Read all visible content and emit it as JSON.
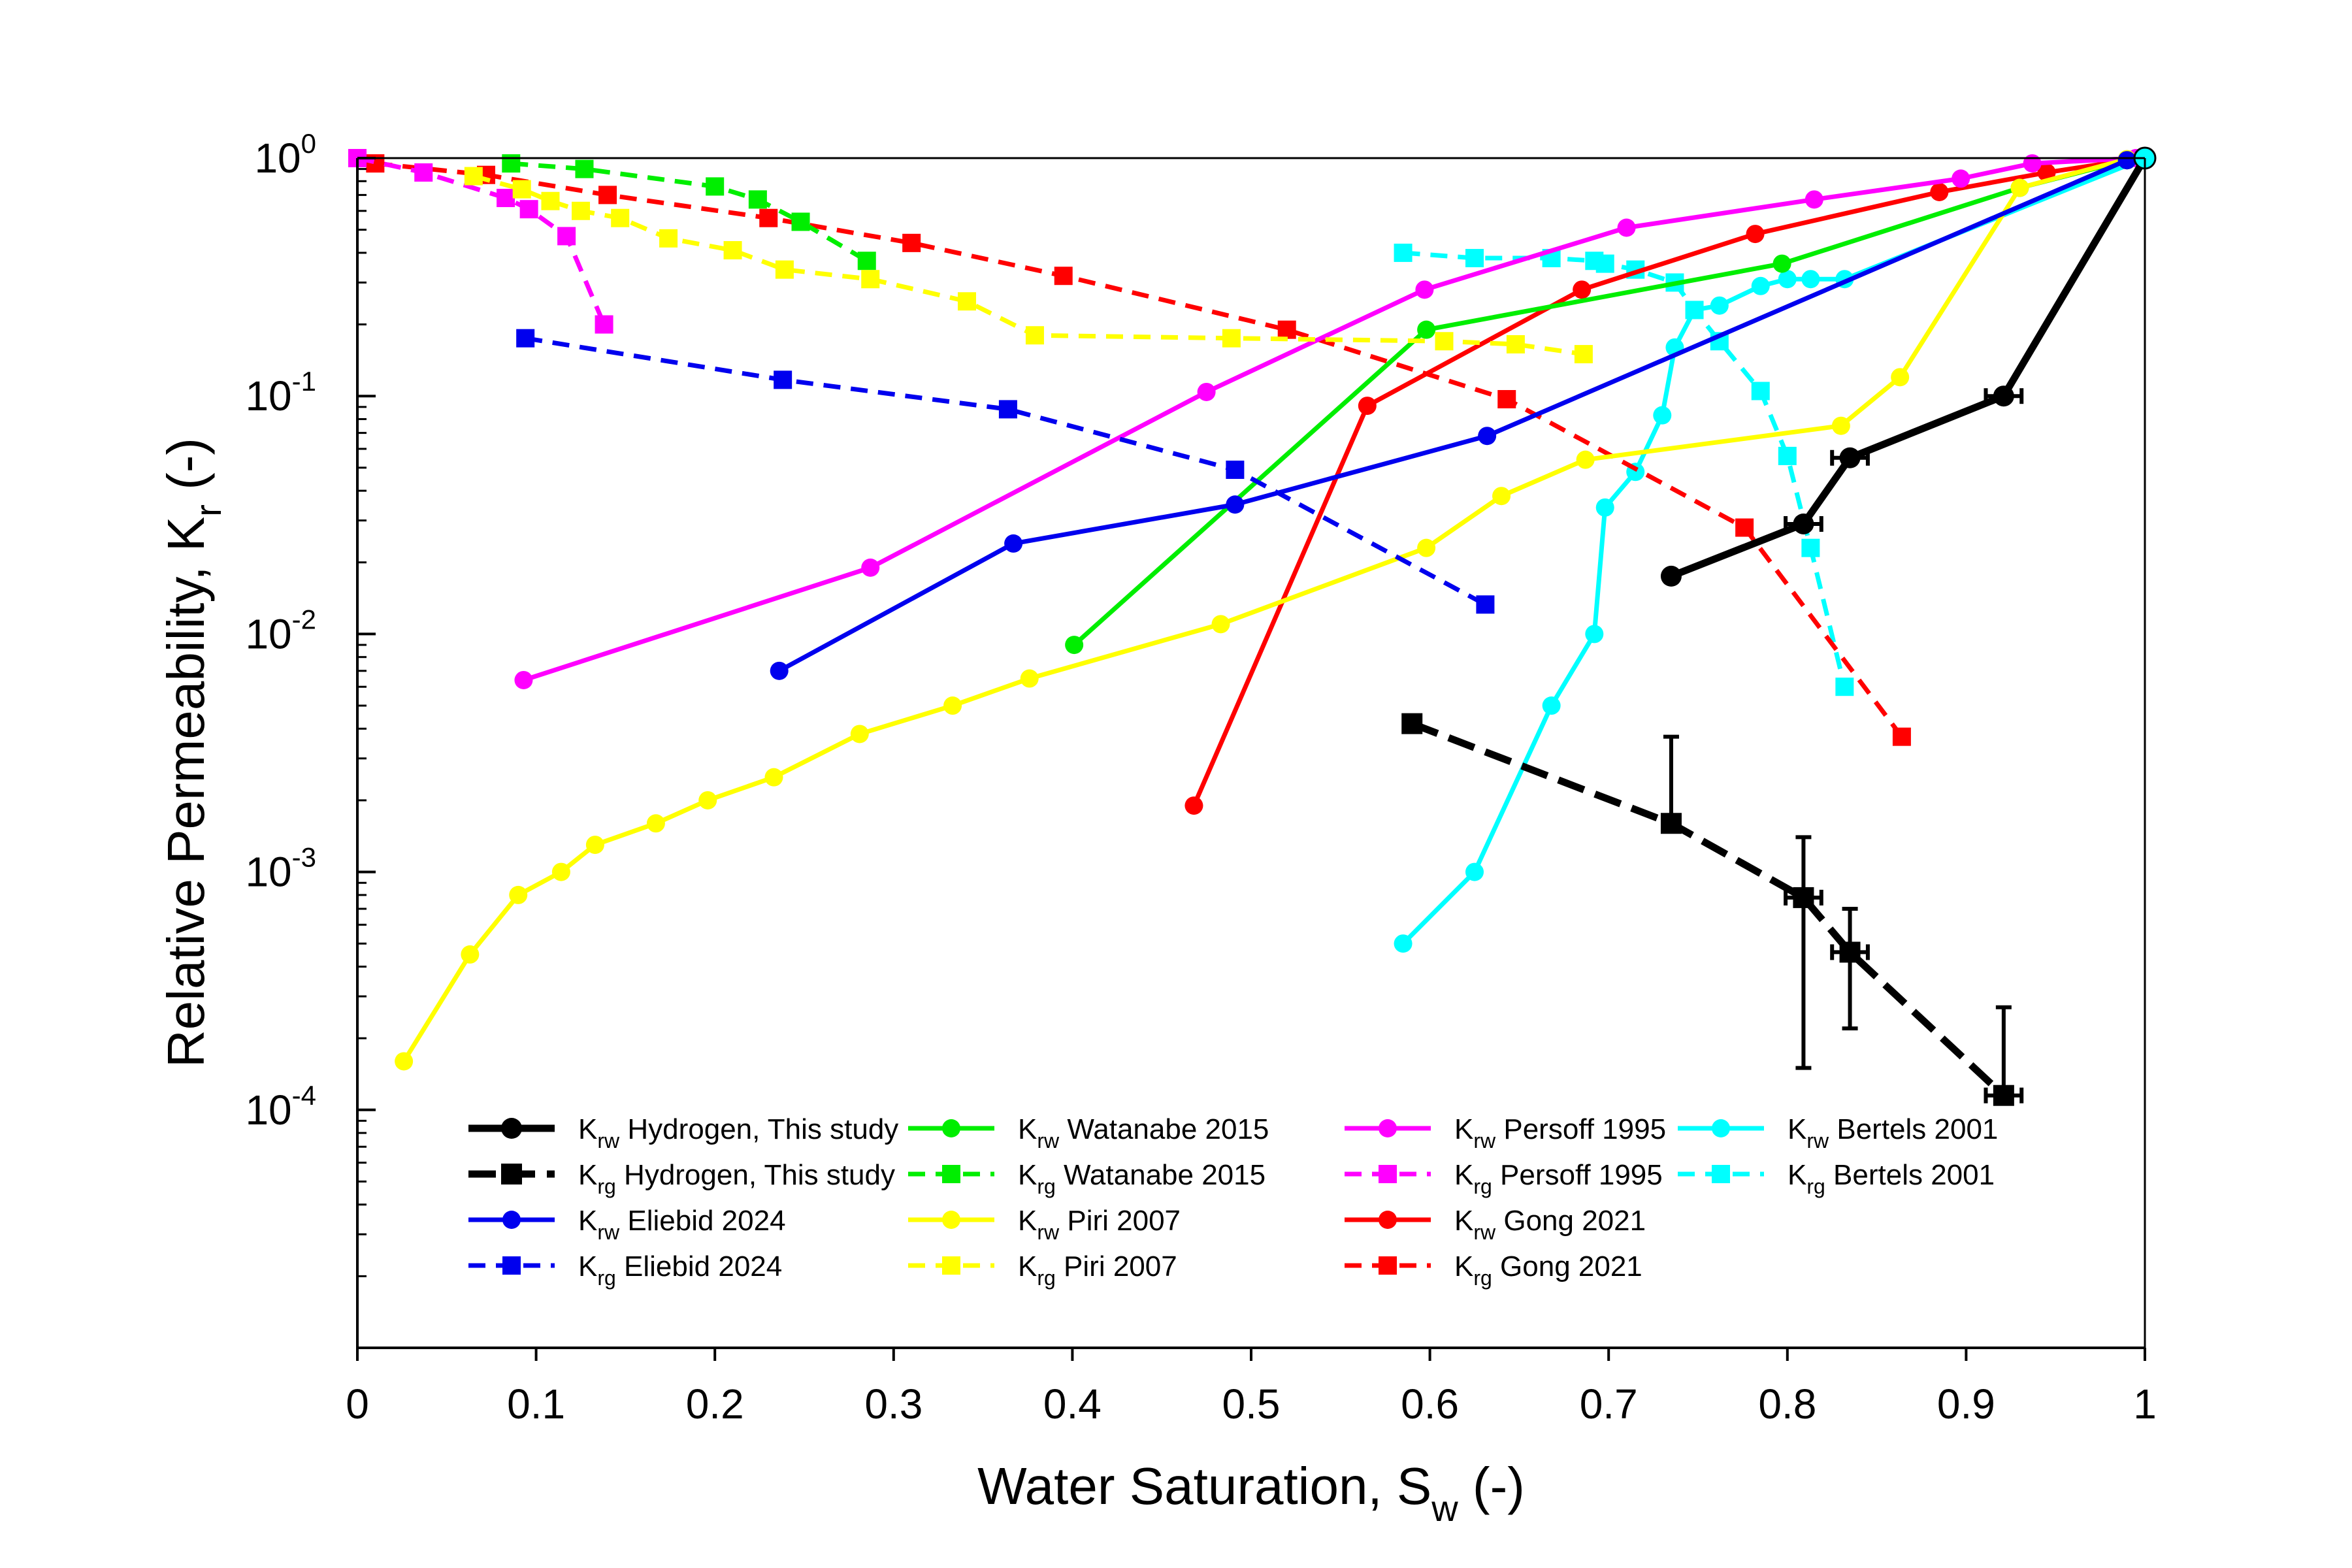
{
  "chart_data": {
    "type": "line",
    "title": "",
    "xlabel": {
      "main": "Water Saturation, S",
      "sub": "w",
      "suffix": " (-)"
    },
    "ylabel": {
      "main": "Relative Permeability, K",
      "sub": "r",
      "suffix": " (-)"
    },
    "xlim": [
      0,
      1
    ],
    "ylim_log10": [
      -5,
      0
    ],
    "y_scale": "log",
    "grid": false,
    "legend_position": "lower-left",
    "x_ticks": [
      {
        "v": 0,
        "label": "0"
      },
      {
        "v": 0.1,
        "label": "0.1"
      },
      {
        "v": 0.2,
        "label": "0.2"
      },
      {
        "v": 0.3,
        "label": "0.3"
      },
      {
        "v": 0.4,
        "label": "0.4"
      },
      {
        "v": 0.5,
        "label": "0.5"
      },
      {
        "v": 0.6,
        "label": "0.6"
      },
      {
        "v": 0.7,
        "label": "0.7"
      },
      {
        "v": 0.8,
        "label": "0.8"
      },
      {
        "v": 0.9,
        "label": "0.9"
      },
      {
        "v": 1,
        "label": "1"
      }
    ],
    "y_ticks": [
      {
        "v": 0,
        "base": "10",
        "exp": "0"
      },
      {
        "v": -1,
        "base": "10",
        "exp": "-1"
      },
      {
        "v": -2,
        "base": "10",
        "exp": "-2"
      },
      {
        "v": -3,
        "base": "10",
        "exp": "-3"
      },
      {
        "v": -4,
        "base": "10",
        "exp": "-4"
      }
    ],
    "series": [
      {
        "id": "krw-bertels",
        "prefix": "K",
        "sub": "rw",
        "name": "Bertels 2001",
        "color": "#00FFFF",
        "marker": "circle",
        "dashed": false,
        "x": [
          0.585,
          0.625,
          0.668,
          0.692,
          0.698,
          0.715,
          0.73,
          0.737,
          0.748,
          0.762,
          0.785,
          0.8,
          0.813,
          0.832,
          1.0
        ],
        "y": [
          0.0005,
          0.001,
          0.005,
          0.01,
          0.034,
          0.048,
          0.083,
          0.16,
          0.23,
          0.24,
          0.29,
          0.31,
          0.31,
          0.31,
          1.0
        ]
      },
      {
        "id": "krg-bertels",
        "prefix": "K",
        "sub": "rg",
        "name": "Bertels 2001",
        "color": "#00FFFF",
        "marker": "square",
        "dashed": true,
        "x": [
          0.585,
          0.625,
          0.668,
          0.692,
          0.698,
          0.715,
          0.737,
          0.748,
          0.762,
          0.785,
          0.8,
          0.813,
          0.832
        ],
        "y": [
          0.4,
          0.38,
          0.38,
          0.37,
          0.36,
          0.34,
          0.3,
          0.23,
          0.17,
          0.105,
          0.056,
          0.023,
          0.006
        ]
      },
      {
        "id": "krw-gong",
        "prefix": "K",
        "sub": "rw",
        "name": "Gong 2021",
        "color": "#FF0000",
        "marker": "circle",
        "dashed": false,
        "x": [
          0.468,
          0.565,
          0.685,
          0.782,
          0.885,
          0.945,
          0.99
        ],
        "y": [
          0.0019,
          0.091,
          0.28,
          0.48,
          0.72,
          0.87,
          0.98
        ]
      },
      {
        "id": "krg-gong",
        "prefix": "K",
        "sub": "rg",
        "name": "Gong 2021",
        "color": "#FF0000",
        "marker": "square",
        "dashed": true,
        "x": [
          0.01,
          0.072,
          0.14,
          0.23,
          0.31,
          0.395,
          0.52,
          0.643,
          0.776,
          0.864
        ],
        "y": [
          0.95,
          0.85,
          0.7,
          0.56,
          0.44,
          0.32,
          0.19,
          0.097,
          0.028,
          0.0037
        ]
      },
      {
        "id": "krw-persoff",
        "prefix": "K",
        "sub": "rw",
        "name": "Persoff 1995",
        "color": "#FF00FF",
        "marker": "circle",
        "dashed": false,
        "x": [
          0.093,
          0.287,
          0.475,
          0.597,
          0.71,
          0.815,
          0.897,
          0.937,
          0.995
        ],
        "y": [
          0.0064,
          0.019,
          0.104,
          0.28,
          0.51,
          0.67,
          0.82,
          0.95,
          1.0
        ]
      },
      {
        "id": "krg-persoff",
        "prefix": "K",
        "sub": "rg",
        "name": "Persoff 1995",
        "color": "#FF00FF",
        "marker": "square",
        "dashed": true,
        "x": [
          0.0,
          0.037,
          0.083,
          0.096,
          0.117,
          0.138
        ],
        "y": [
          1.0,
          0.87,
          0.68,
          0.61,
          0.47,
          0.2
        ]
      },
      {
        "id": "krw-watanabe",
        "prefix": "K",
        "sub": "rw",
        "name": "Watanabe 2015",
        "color": "#00EE00",
        "marker": "circle",
        "dashed": false,
        "x": [
          0.401,
          0.598,
          0.797,
          0.93,
          0.99
        ],
        "y": [
          0.009,
          0.19,
          0.36,
          0.75,
          0.98
        ]
      },
      {
        "id": "krg-watanabe",
        "prefix": "K",
        "sub": "rg",
        "name": "Watanabe 2015",
        "color": "#00EE00",
        "marker": "square",
        "dashed": true,
        "x": [
          0.086,
          0.127,
          0.2,
          0.224,
          0.248,
          0.285
        ],
        "y": [
          0.95,
          0.9,
          0.76,
          0.67,
          0.54,
          0.37
        ]
      },
      {
        "id": "krw-piri",
        "prefix": "K",
        "sub": "rw",
        "name": "Piri 2007",
        "color": "#FFFF00",
        "marker": "circle",
        "dashed": false,
        "x": [
          0.026,
          0.063,
          0.09,
          0.114,
          0.133,
          0.167,
          0.196,
          0.233,
          0.281,
          0.333,
          0.376,
          0.483,
          0.598,
          0.64,
          0.687,
          0.83,
          0.863,
          0.93,
          0.99
        ],
        "y": [
          0.00016,
          0.00045,
          0.0008,
          0.001,
          0.0013,
          0.0016,
          0.002,
          0.0025,
          0.0038,
          0.005,
          0.0065,
          0.011,
          0.023,
          0.038,
          0.054,
          0.075,
          0.12,
          0.75,
          0.99
        ]
      },
      {
        "id": "krg-piri",
        "prefix": "K",
        "sub": "rg",
        "name": "Piri 2007",
        "color": "#FFFF00",
        "marker": "square",
        "dashed": true,
        "x": [
          0.065,
          0.092,
          0.108,
          0.125,
          0.147,
          0.174,
          0.21,
          0.239,
          0.287,
          0.341,
          0.379,
          0.489,
          0.608,
          0.648,
          0.686
        ],
        "y": [
          0.84,
          0.74,
          0.66,
          0.6,
          0.56,
          0.46,
          0.41,
          0.34,
          0.31,
          0.25,
          0.18,
          0.175,
          0.17,
          0.165,
          0.15
        ]
      },
      {
        "id": "krw-eliebid",
        "prefix": "K",
        "sub": "rw",
        "name": "Eliebid 2024",
        "color": "#0000EE",
        "marker": "circle",
        "dashed": false,
        "x": [
          0.236,
          0.367,
          0.491,
          0.632,
          0.99
        ],
        "y": [
          0.007,
          0.024,
          0.035,
          0.068,
          0.98
        ]
      },
      {
        "id": "krg-eliebid",
        "prefix": "K",
        "sub": "rg",
        "name": "Eliebid 2024",
        "color": "#0000EE",
        "marker": "square",
        "dashed": true,
        "x": [
          0.094,
          0.238,
          0.364,
          0.491,
          0.631
        ],
        "y": [
          0.175,
          0.117,
          0.088,
          0.049,
          0.0133
        ]
      },
      {
        "id": "krw-h2",
        "prefix": "K",
        "sub": "rw",
        "name": "Hydrogen, This study",
        "color": "#000000",
        "marker": "circle",
        "dashed": false,
        "thick": true,
        "x": [
          0.735,
          0.809,
          0.835,
          0.921,
          1.0
        ],
        "y": [
          0.0175,
          0.029,
          0.055,
          0.1,
          1.0
        ],
        "xerr": [
          0,
          0.01,
          0.01,
          0.01,
          0
        ]
      },
      {
        "id": "krg-h2",
        "prefix": "K",
        "sub": "rg",
        "name": "Hydrogen, This study",
        "color": "#000000",
        "marker": "square",
        "dashed": true,
        "thick": true,
        "x": [
          0.59,
          0.735,
          0.809,
          0.835,
          0.921
        ],
        "y": [
          0.0042,
          0.0016,
          0.00078,
          0.00046,
          0.000115
        ],
        "xerr": [
          0,
          0,
          0.01,
          0.01,
          0.01
        ],
        "ylo": [
          null,
          0.0016,
          0.00015,
          0.00022,
          0.000115
        ],
        "yhi": [
          null,
          0.0037,
          0.0014,
          0.0007,
          0.00027
        ]
      }
    ],
    "endpoint_marker": {
      "x": 1.0,
      "y": 1.0,
      "color": "#00FFFF"
    },
    "legend": {
      "columns": [
        [
          "krw-h2",
          "krg-h2",
          "krw-eliebid",
          "krg-eliebid"
        ],
        [
          "krw-watanabe",
          "krg-watanabe",
          "krw-piri",
          "krg-piri"
        ],
        [
          "krw-persoff",
          "krg-persoff",
          "krw-gong",
          "krg-gong"
        ],
        [
          "krw-bertels",
          "krg-bertels"
        ]
      ]
    }
  }
}
